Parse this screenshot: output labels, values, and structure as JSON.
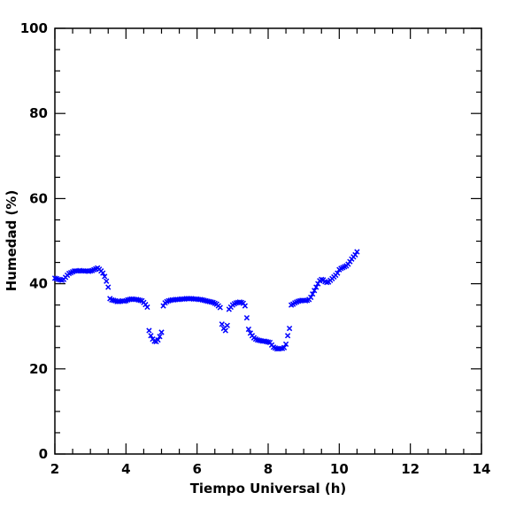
{
  "chart_data": {
    "type": "scatter",
    "xlabel": "Tiempo Universal (h)",
    "ylabel": "Humedad (%)",
    "xlim": [
      2,
      14
    ],
    "ylim": [
      0,
      100
    ],
    "x_ticks": [
      2,
      4,
      6,
      8,
      10,
      12,
      14
    ],
    "y_ticks": [
      0,
      20,
      40,
      60,
      80,
      100
    ],
    "x_tick_labels": [
      "2",
      "4",
      "6",
      "8",
      "10",
      "12",
      "14"
    ],
    "y_tick_labels": [
      "0",
      "20",
      "40",
      "60",
      "80",
      "100"
    ],
    "grid": false,
    "marker": "x",
    "marker_color": "#0000ff",
    "series": [
      {
        "points": [
          [
            2.0,
            41.3
          ],
          [
            2.05,
            41.2
          ],
          [
            2.1,
            41.0
          ],
          [
            2.15,
            40.9
          ],
          [
            2.2,
            40.8
          ],
          [
            2.25,
            41.0
          ],
          [
            2.3,
            41.5
          ],
          [
            2.35,
            42.0
          ],
          [
            2.4,
            42.4
          ],
          [
            2.45,
            42.6
          ],
          [
            2.5,
            42.8
          ],
          [
            2.55,
            43.0
          ],
          [
            2.6,
            43.0
          ],
          [
            2.65,
            43.0
          ],
          [
            2.7,
            43.1
          ],
          [
            2.75,
            43.0
          ],
          [
            2.8,
            43.0
          ],
          [
            2.85,
            43.0
          ],
          [
            2.9,
            43.0
          ],
          [
            2.95,
            42.9
          ],
          [
            3.0,
            43.0
          ],
          [
            3.05,
            43.1
          ],
          [
            3.1,
            43.3
          ],
          [
            3.15,
            43.5
          ],
          [
            3.2,
            43.7
          ],
          [
            3.25,
            43.4
          ],
          [
            3.3,
            43.0
          ],
          [
            3.35,
            42.5
          ],
          [
            3.4,
            41.7
          ],
          [
            3.45,
            40.6
          ],
          [
            3.5,
            39.2
          ],
          [
            3.55,
            36.5
          ],
          [
            3.6,
            36.2
          ],
          [
            3.65,
            36.1
          ],
          [
            3.7,
            36.0
          ],
          [
            3.75,
            35.8
          ],
          [
            3.8,
            35.8
          ],
          [
            3.85,
            35.9
          ],
          [
            3.9,
            36.0
          ],
          [
            3.95,
            35.9
          ],
          [
            4.0,
            36.0
          ],
          [
            4.05,
            36.2
          ],
          [
            4.1,
            36.3
          ],
          [
            4.15,
            36.4
          ],
          [
            4.2,
            36.4
          ],
          [
            4.25,
            36.3
          ],
          [
            4.3,
            36.3
          ],
          [
            4.35,
            36.2
          ],
          [
            4.4,
            36.1
          ],
          [
            4.45,
            36.0
          ],
          [
            4.5,
            35.6
          ],
          [
            4.55,
            35.1
          ],
          [
            4.6,
            34.5
          ],
          [
            4.65,
            29.0
          ],
          [
            4.7,
            27.8
          ],
          [
            4.75,
            27.0
          ],
          [
            4.8,
            26.5
          ],
          [
            4.85,
            26.4
          ],
          [
            4.9,
            26.8
          ],
          [
            4.95,
            27.6
          ],
          [
            5.0,
            28.6
          ],
          [
            5.05,
            34.8
          ],
          [
            5.1,
            35.5
          ],
          [
            5.15,
            35.8
          ],
          [
            5.2,
            36.0
          ],
          [
            5.25,
            36.1
          ],
          [
            5.3,
            36.2
          ],
          [
            5.35,
            36.2
          ],
          [
            5.4,
            36.3
          ],
          [
            5.45,
            36.3
          ],
          [
            5.5,
            36.3
          ],
          [
            5.55,
            36.4
          ],
          [
            5.6,
            36.4
          ],
          [
            5.65,
            36.4
          ],
          [
            5.7,
            36.5
          ],
          [
            5.75,
            36.5
          ],
          [
            5.8,
            36.5
          ],
          [
            5.85,
            36.5
          ],
          [
            5.9,
            36.4
          ],
          [
            5.95,
            36.4
          ],
          [
            6.0,
            36.4
          ],
          [
            6.05,
            36.3
          ],
          [
            6.1,
            36.3
          ],
          [
            6.15,
            36.2
          ],
          [
            6.2,
            36.1
          ],
          [
            6.25,
            36.0
          ],
          [
            6.3,
            35.9
          ],
          [
            6.35,
            35.8
          ],
          [
            6.4,
            35.7
          ],
          [
            6.45,
            35.6
          ],
          [
            6.5,
            35.4
          ],
          [
            6.55,
            35.2
          ],
          [
            6.6,
            34.8
          ],
          [
            6.65,
            34.4
          ],
          [
            6.7,
            30.5
          ],
          [
            6.75,
            29.5
          ],
          [
            6.8,
            29.0
          ],
          [
            6.85,
            30.2
          ],
          [
            6.9,
            34.0
          ],
          [
            6.95,
            34.5
          ],
          [
            7.0,
            35.0
          ],
          [
            7.05,
            35.3
          ],
          [
            7.1,
            35.5
          ],
          [
            7.15,
            35.6
          ],
          [
            7.2,
            35.7
          ],
          [
            7.25,
            35.6
          ],
          [
            7.3,
            35.4
          ],
          [
            7.35,
            34.8
          ],
          [
            7.4,
            32.0
          ],
          [
            7.45,
            29.3
          ],
          [
            7.5,
            28.4
          ],
          [
            7.55,
            27.8
          ],
          [
            7.6,
            27.3
          ],
          [
            7.65,
            27.0
          ],
          [
            7.7,
            26.8
          ],
          [
            7.75,
            26.7
          ],
          [
            7.8,
            26.6
          ],
          [
            7.85,
            26.5
          ],
          [
            7.9,
            26.5
          ],
          [
            7.95,
            26.4
          ],
          [
            8.0,
            26.3
          ],
          [
            8.05,
            26.2
          ],
          [
            8.1,
            25.6
          ],
          [
            8.15,
            25.1
          ],
          [
            8.2,
            24.9
          ],
          [
            8.25,
            24.7
          ],
          [
            8.3,
            24.7
          ],
          [
            8.35,
            24.8
          ],
          [
            8.4,
            24.8
          ],
          [
            8.45,
            25.0
          ],
          [
            8.5,
            25.8
          ],
          [
            8.55,
            27.8
          ],
          [
            8.6,
            29.5
          ],
          [
            8.65,
            35.0
          ],
          [
            8.7,
            35.2
          ],
          [
            8.75,
            35.5
          ],
          [
            8.8,
            35.7
          ],
          [
            8.85,
            35.9
          ],
          [
            8.9,
            36.0
          ],
          [
            8.95,
            36.1
          ],
          [
            9.0,
            36.1
          ],
          [
            9.05,
            36.0
          ],
          [
            9.1,
            36.1
          ],
          [
            9.15,
            36.3
          ],
          [
            9.2,
            36.8
          ],
          [
            9.25,
            37.6
          ],
          [
            9.3,
            38.4
          ],
          [
            9.35,
            39.2
          ],
          [
            9.4,
            40.0
          ],
          [
            9.45,
            40.7
          ],
          [
            9.5,
            41.0
          ],
          [
            9.55,
            40.9
          ],
          [
            9.6,
            40.5
          ],
          [
            9.65,
            40.3
          ],
          [
            9.7,
            40.4
          ],
          [
            9.75,
            40.8
          ],
          [
            9.8,
            41.2
          ],
          [
            9.85,
            41.6
          ],
          [
            9.9,
            42.0
          ],
          [
            9.95,
            42.5
          ],
          [
            10.0,
            43.3
          ],
          [
            10.05,
            43.6
          ],
          [
            10.1,
            43.8
          ],
          [
            10.15,
            44.0
          ],
          [
            10.2,
            44.2
          ],
          [
            10.25,
            44.6
          ],
          [
            10.3,
            45.2
          ],
          [
            10.35,
            45.8
          ],
          [
            10.4,
            46.3
          ],
          [
            10.45,
            46.8
          ],
          [
            10.5,
            47.5
          ]
        ]
      }
    ]
  }
}
